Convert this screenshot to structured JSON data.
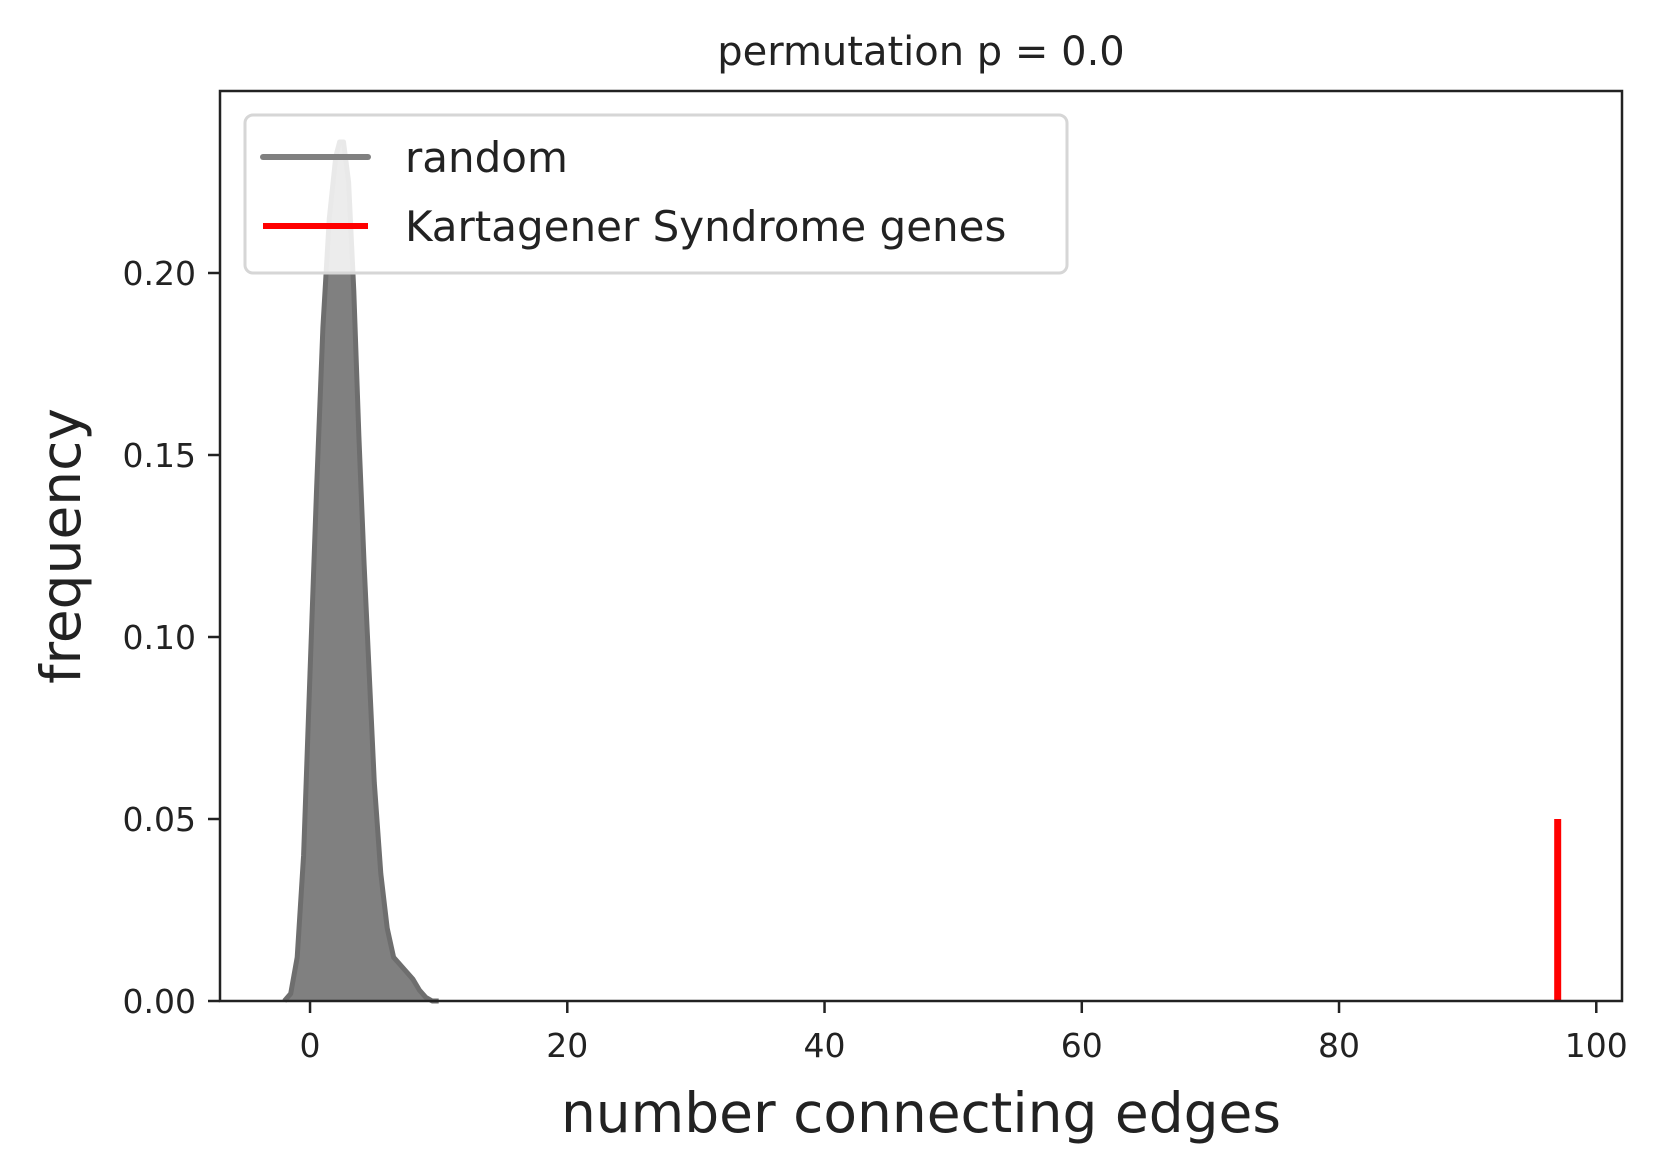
{
  "chart_data": {
    "type": "area",
    "title": "permutation p = 0.0",
    "xlabel": "number connecting edges",
    "ylabel": "frequency",
    "xlim": [
      -7,
      102
    ],
    "ylim": [
      0,
      0.25
    ],
    "xticks": [
      0,
      20,
      40,
      60,
      80,
      100
    ],
    "yticks": [
      0.0,
      0.05,
      0.1,
      0.15,
      0.2
    ],
    "xtick_labels": [
      "0",
      "20",
      "40",
      "60",
      "80",
      "100"
    ],
    "ytick_labels": [
      "0.00",
      "0.05",
      "0.10",
      "0.15",
      "0.20"
    ],
    "grid": false,
    "legend_position": "upper-left",
    "series": [
      {
        "name": "random",
        "kind": "density",
        "color": "#808080",
        "x": [
          -2.0,
          -1.5,
          -1.0,
          -0.5,
          0.0,
          0.5,
          1.0,
          1.5,
          2.0,
          2.3,
          2.6,
          3.0,
          3.4,
          3.8,
          4.2,
          4.6,
          5.0,
          5.5,
          6.0,
          6.5,
          7.0,
          7.5,
          8.0,
          8.5,
          9.0,
          9.5,
          10.0
        ],
        "y": [
          0.0,
          0.002,
          0.012,
          0.04,
          0.09,
          0.14,
          0.185,
          0.215,
          0.232,
          0.236,
          0.236,
          0.225,
          0.195,
          0.155,
          0.12,
          0.09,
          0.06,
          0.035,
          0.02,
          0.012,
          0.01,
          0.008,
          0.006,
          0.003,
          0.001,
          0.0,
          0.0
        ]
      },
      {
        "name": "Kartagener Syndrome genes",
        "kind": "vline",
        "color": "#ff0000",
        "x": 97,
        "y_range": [
          0,
          0.05
        ]
      }
    ]
  },
  "colors": {
    "axes": "#222222",
    "random": "#808080",
    "observed": "#ff0000"
  }
}
